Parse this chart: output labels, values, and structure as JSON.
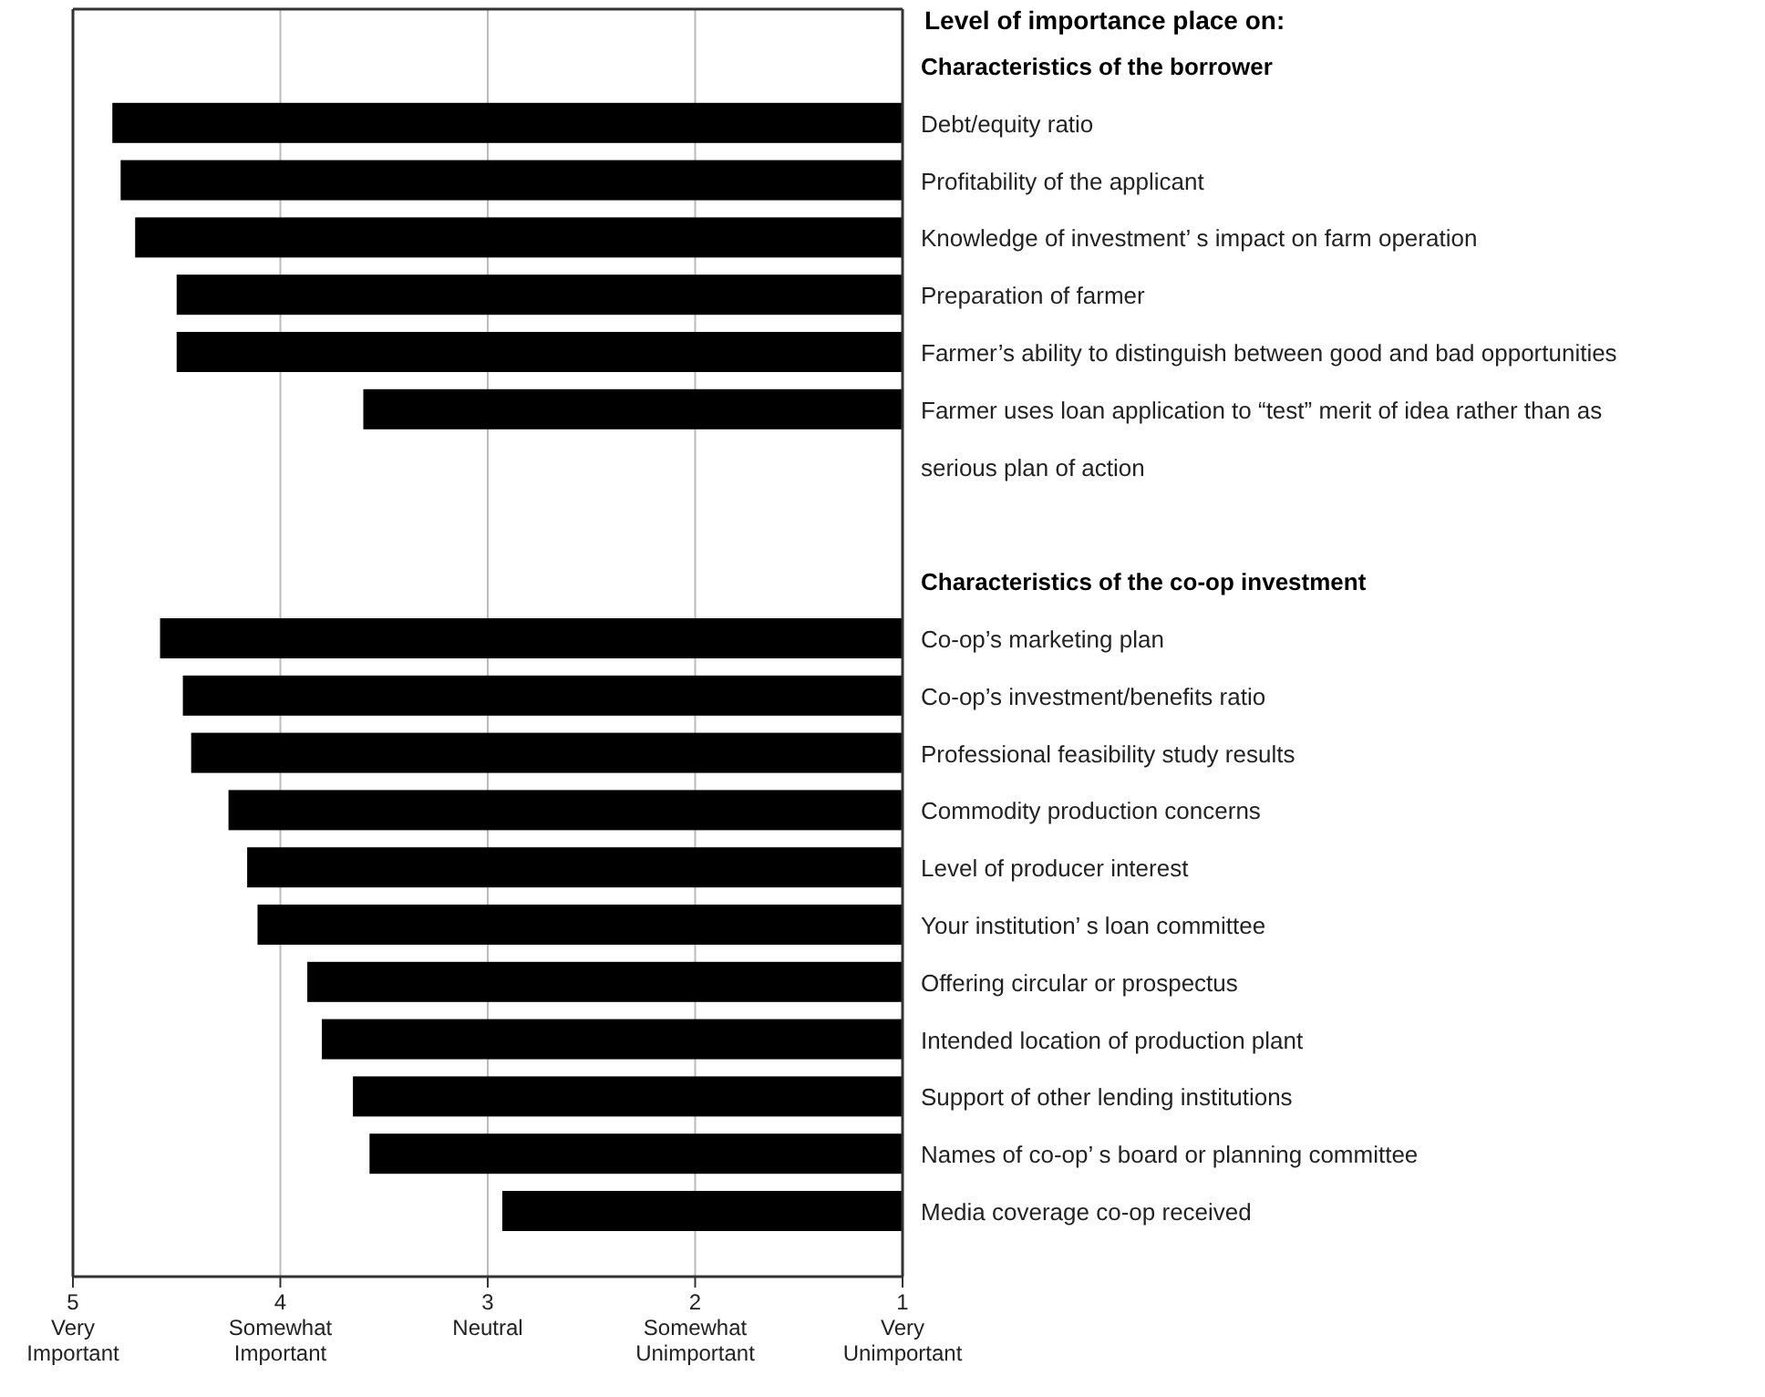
{
  "chart_data": [
    {
      "type": "bar",
      "orientation": "horizontal",
      "title": "Level of importance place on:",
      "subtitle": "Characteristics of the borrower",
      "categories": [
        "Debt/equity ratio",
        "Profitability of the applicant",
        "Knowledge of investment’ s impact on farm operation",
        "Preparation of farmer",
        "Farmer’s ability to distinguish between good and bad opportunities",
        "Farmer uses loan application to “test” merit of idea rather than as serious plan of action"
      ],
      "values": [
        4.81,
        4.77,
        4.7,
        4.5,
        4.5,
        3.6
      ],
      "color": "#000000",
      "xlim": [
        5,
        1
      ],
      "xticks": [
        5,
        4,
        3,
        2,
        1
      ],
      "tick_labels": "y",
      "grid": "x"
    },
    {
      "type": "bar",
      "orientation": "horizontal",
      "title": "Characteristics of the co-op investment",
      "categories": [
        "Co-op’s marketing plan",
        "Co-op’s investment/benefits ratio",
        "Professional feasibility study results",
        "Commodity production concerns",
        "Level of producer interest",
        "Your institution’ s loan committee",
        "Offering circular or prospectus",
        "Intended location of production plant",
        "Support of other lending institutions",
        "Names of co-op’ s board or planning committee",
        "Media coverage co-op received"
      ],
      "values": [
        4.58,
        4.47,
        4.43,
        4.25,
        4.16,
        4.11,
        3.87,
        3.8,
        3.65,
        3.57,
        2.93
      ],
      "color": "#000000",
      "xlim": [
        5,
        1
      ],
      "xticks": [
        {
          "value": 5,
          "label": "5\nVery\nImportant"
        },
        {
          "value": 4,
          "label": "4\nSomewhat\nImportant"
        },
        {
          "value": 3,
          "label": "3\nNeutral"
        },
        {
          "value": 2,
          "label": "2\nSomewhat\nUnimportant"
        },
        {
          "value": 1,
          "label": "1\nVery\nUnimportant"
        }
      ],
      "grid": "x"
    }
  ]
}
